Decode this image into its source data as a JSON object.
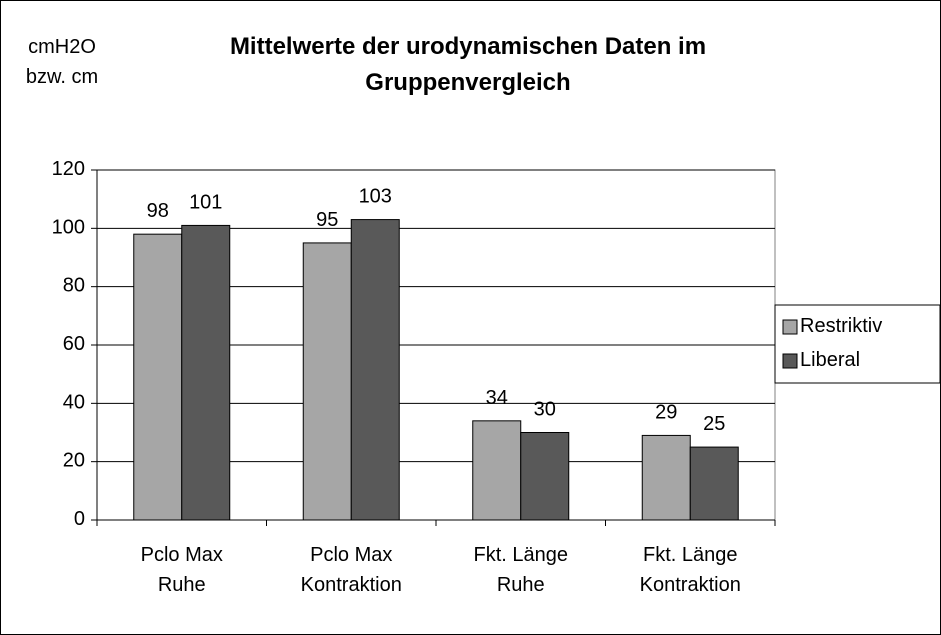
{
  "chart_data": {
    "type": "bar",
    "title": "Mittelwerte der urodynamischen Daten im\nGruppenvergleich",
    "y_label": "cmH2O\nbzw. cm",
    "categories": [
      "Pclo Max\nRuhe",
      "Pclo Max\nKontraktion",
      "Fkt. Länge\nRuhe",
      "Fkt. Länge\nKontraktion"
    ],
    "series": [
      {
        "name": "Restriktiv",
        "color": "#a6a6a6",
        "values": [
          98,
          95,
          34,
          29
        ]
      },
      {
        "name": "Liberal",
        "color": "#595959",
        "values": [
          101,
          103,
          30,
          25
        ]
      }
    ],
    "ylim": [
      0,
      120
    ],
    "yticks": [
      0,
      20,
      40,
      60,
      80,
      100,
      120
    ],
    "grid": true,
    "legend": "right"
  }
}
